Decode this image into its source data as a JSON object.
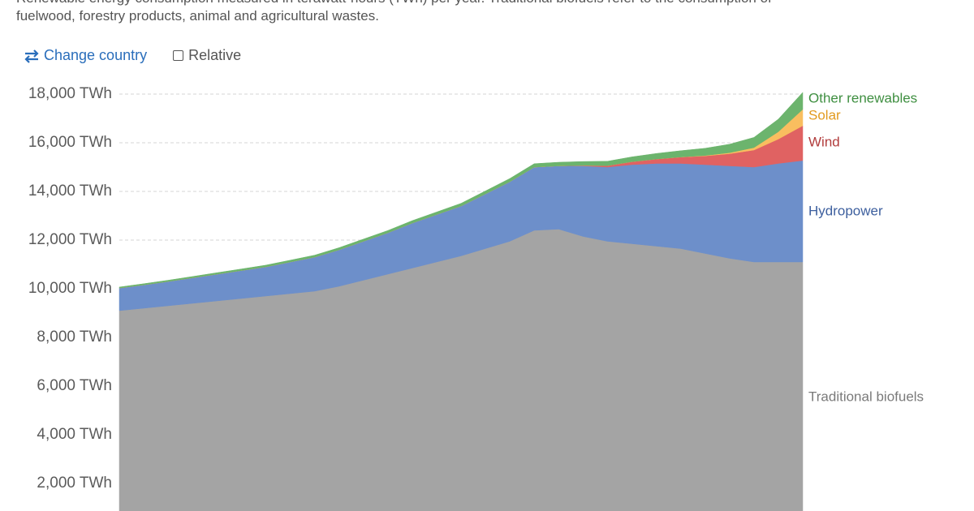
{
  "controls": {
    "change_country": "Change country",
    "relative": "Relative"
  },
  "chart_data": {
    "type": "stacked-area",
    "subtitle": [
      "Renewable energy consumption measured in terawatt-hours (TWh) per year. Traditional biofuels refer to the consumption of",
      "fuelwood, forestry products, animal and agricultural wastes."
    ],
    "categories": [
      null,
      null,
      null,
      null,
      null,
      null,
      null,
      null,
      null,
      null,
      null,
      null,
      null,
      null,
      null,
      null,
      null,
      null,
      null,
      null,
      null,
      null,
      null,
      null,
      null,
      null,
      null,
      null,
      null
    ],
    "ylim": [
      0,
      18000
    ],
    "yticks": [
      {
        "value": 2000,
        "label": "2,000 TWh"
      },
      {
        "value": 4000,
        "label": "4,000 TWh"
      },
      {
        "value": 6000,
        "label": "6,000 TWh"
      },
      {
        "value": 8000,
        "label": "8,000 TWh"
      },
      {
        "value": 10000,
        "label": "10,000 TWh"
      },
      {
        "value": 12000,
        "label": "12,000 TWh"
      },
      {
        "value": 14000,
        "label": "14,000 TWh"
      },
      {
        "value": 16000,
        "label": "16,000 TWh"
      },
      {
        "value": 18000,
        "label": "18,000 TWh"
      }
    ],
    "grid": true,
    "series": [
      {
        "name": "Traditional biofuels",
        "color": "#a4a4a4",
        "label_color": "#7a7a7a",
        "values": [
          9100,
          9200,
          9300,
          9400,
          9500,
          9600,
          9700,
          9800,
          9900,
          10100,
          10350,
          10600,
          10850,
          11100,
          11350,
          11650,
          11950,
          12400,
          12450,
          12150,
          11950,
          11850,
          11750,
          11650,
          11450,
          11250,
          11100,
          11100,
          11100
        ]
      },
      {
        "name": "Hydropower",
        "color": "#6d8fca",
        "label_color": "#3d5f9e",
        "values": [
          930,
          960,
          1000,
          1050,
          1100,
          1150,
          1200,
          1300,
          1400,
          1500,
          1600,
          1700,
          1850,
          1950,
          2050,
          2250,
          2450,
          2600,
          2600,
          2900,
          3050,
          3250,
          3400,
          3500,
          3650,
          3800,
          3900,
          4050,
          4170
        ]
      },
      {
        "name": "Wind",
        "color": "#e06262",
        "label_color": "#b13c3c",
        "values": [
          0,
          0,
          0,
          0,
          0,
          0,
          0,
          0,
          0,
          0,
          0,
          0,
          0,
          0,
          0,
          0,
          0,
          0,
          0,
          20,
          60,
          120,
          180,
          260,
          360,
          500,
          700,
          1000,
          1430
        ]
      },
      {
        "name": "Solar",
        "color": "#f9be5f",
        "label_color": "#e29b1f",
        "values": [
          0,
          0,
          0,
          0,
          0,
          0,
          0,
          0,
          0,
          0,
          0,
          0,
          0,
          0,
          0,
          0,
          0,
          0,
          0,
          0,
          0,
          0,
          0,
          5,
          15,
          40,
          100,
          300,
          670
        ]
      },
      {
        "name": "Other renewables",
        "color": "#6cb46d",
        "label_color": "#3f8f41",
        "values": [
          40,
          45,
          50,
          55,
          60,
          65,
          70,
          75,
          80,
          85,
          90,
          95,
          100,
          105,
          110,
          120,
          130,
          140,
          150,
          160,
          180,
          200,
          230,
          260,
          300,
          350,
          420,
          520,
          700
        ]
      }
    ]
  }
}
